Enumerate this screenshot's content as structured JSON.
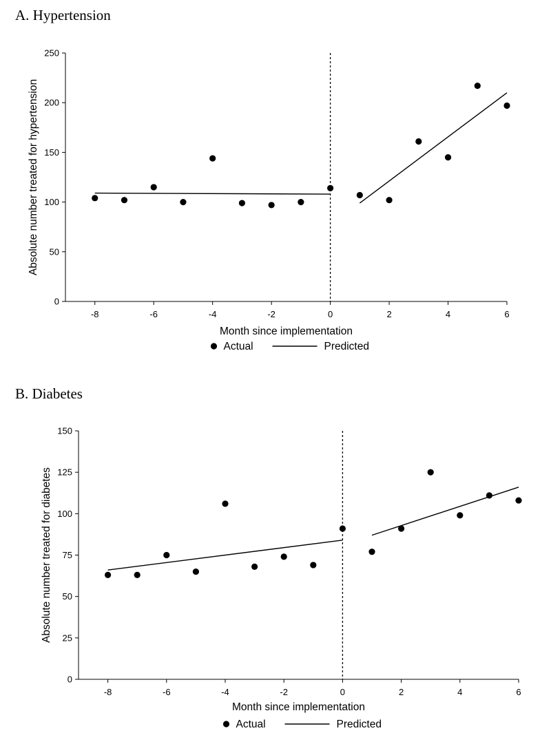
{
  "chart_data": [
    {
      "type": "scatter",
      "title": "A. Hypertension",
      "xlabel": "Month since implementation",
      "ylabel": "Absolute number treated for hypertension",
      "xlim": [
        -9,
        6
      ],
      "ylim": [
        0,
        250
      ],
      "xticks": [
        -8,
        -6,
        -4,
        -2,
        0,
        2,
        4,
        6
      ],
      "yticks": [
        0,
        50,
        100,
        150,
        200,
        250
      ],
      "legend": [
        "Actual",
        "Predicted"
      ],
      "legend_position": "bottom",
      "intervention_line_x": 0,
      "actual": {
        "x": [
          -8,
          -7,
          -6,
          -5,
          -4,
          -3,
          -2,
          -1,
          0,
          1,
          2,
          3,
          4,
          5,
          6
        ],
        "y": [
          104,
          102,
          115,
          100,
          144,
          99,
          97,
          100,
          114,
          107,
          102,
          161,
          145,
          217,
          197
        ]
      },
      "predicted": [
        {
          "x": [
            -8,
            0
          ],
          "y": [
            109,
            108
          ]
        },
        {
          "x": [
            1,
            6
          ],
          "y": [
            99,
            210
          ]
        }
      ]
    },
    {
      "type": "scatter",
      "title": "B. Diabetes",
      "xlabel": "Month since implementation",
      "ylabel": "Absolute number treated for diabetes",
      "xlim": [
        -9,
        6
      ],
      "ylim": [
        0,
        150
      ],
      "xticks": [
        -8,
        -6,
        -4,
        -2,
        0,
        2,
        4,
        6
      ],
      "yticks": [
        0,
        25,
        50,
        75,
        100,
        125,
        150
      ],
      "legend": [
        "Actual",
        "Predicted"
      ],
      "legend_position": "bottom",
      "intervention_line_x": 0,
      "actual": {
        "x": [
          -8,
          -7,
          -6,
          -5,
          -4,
          -3,
          -2,
          -1,
          0,
          1,
          2,
          3,
          4,
          5,
          6
        ],
        "y": [
          63,
          63,
          75,
          65,
          106,
          68,
          74,
          69,
          91,
          77,
          91,
          125,
          99,
          111,
          108
        ]
      },
      "predicted": [
        {
          "x": [
            -8,
            0
          ],
          "y": [
            66,
            84
          ]
        },
        {
          "x": [
            1,
            6
          ],
          "y": [
            87,
            116
          ]
        }
      ]
    }
  ]
}
